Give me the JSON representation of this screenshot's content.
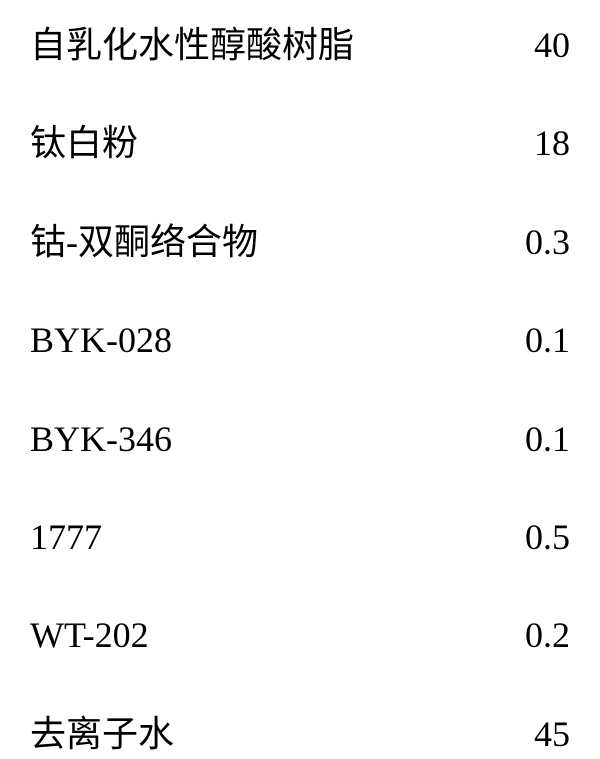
{
  "formula": {
    "background_color": "#ffffff",
    "text_color": "#000000",
    "font_size": 36,
    "rows": [
      {
        "label": "自乳化水性醇酸树脂",
        "value": "40"
      },
      {
        "label": "钛白粉",
        "value": "18"
      },
      {
        "label": "钴-双酮络合物",
        "value": "0.3"
      },
      {
        "label": "BYK-028",
        "value": "0.1"
      },
      {
        "label": "BYK-346",
        "value": "0.1"
      },
      {
        "label": "1777",
        "value": "0.5"
      },
      {
        "label": "WT-202",
        "value": "0.2"
      },
      {
        "label": "去离子水",
        "value": "45"
      }
    ]
  }
}
